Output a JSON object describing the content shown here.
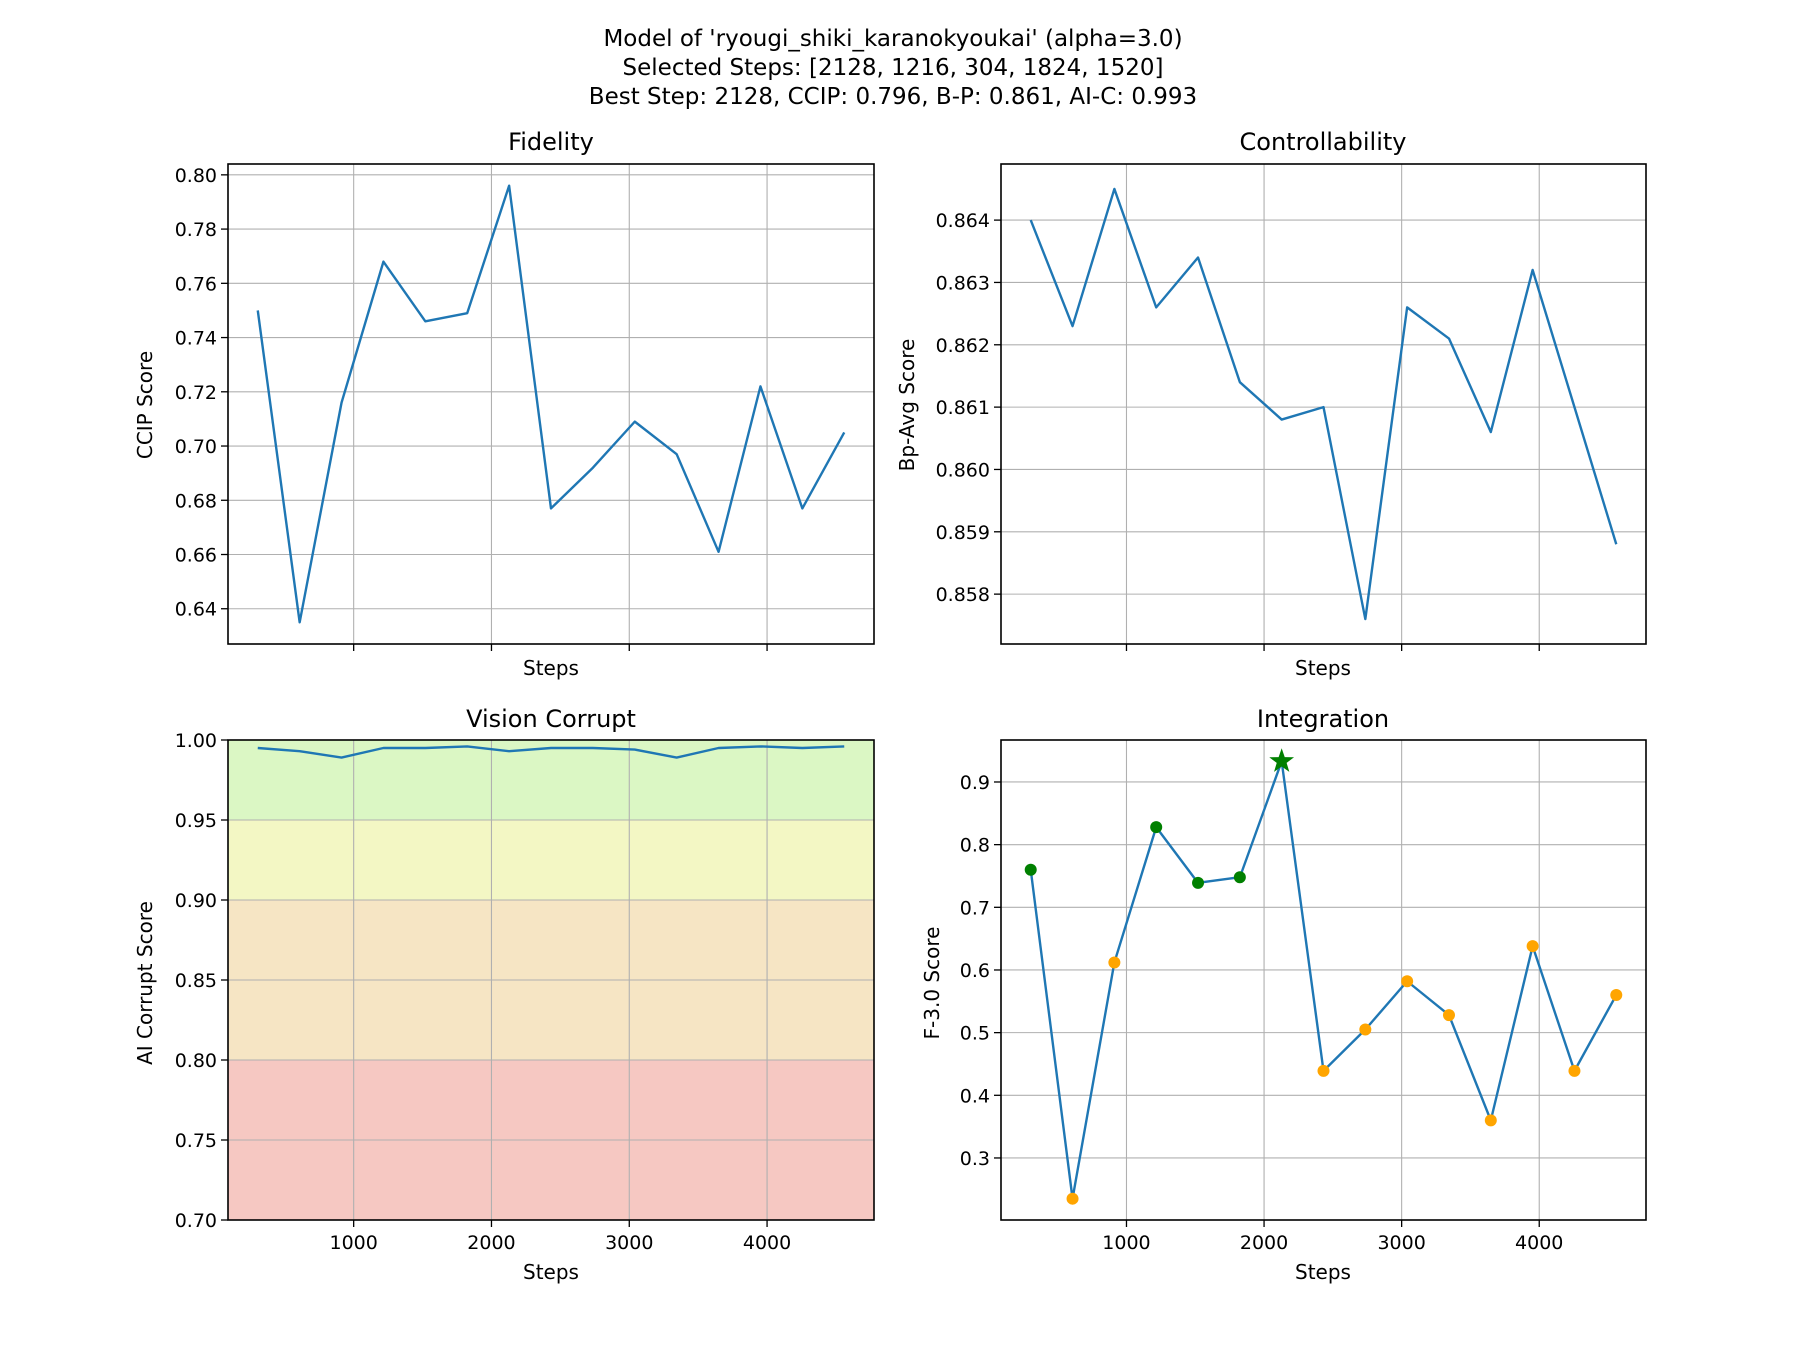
{
  "figure": {
    "title_lines": [
      "Model of 'ryougi_shiki_karanokyoukai' (alpha=3.0)",
      "Selected Steps: [2128, 1216, 304, 1824, 1520]",
      "Best Step: 2128, CCIP: 0.796, B-P: 0.861, AI-C: 0.993"
    ]
  },
  "chart_data": [
    {
      "type": "line",
      "title": "Fidelity",
      "xlabel": "Steps",
      "ylabel": "CCIP Score",
      "x": [
        304,
        608,
        912,
        1216,
        1520,
        1824,
        2128,
        2432,
        2736,
        3040,
        3344,
        3648,
        3952,
        4256,
        4560
      ],
      "series": [
        {
          "values": [
            0.75,
            0.635,
            0.716,
            0.768,
            0.746,
            0.749,
            0.796,
            0.677,
            0.692,
            0.709,
            0.697,
            0.661,
            0.722,
            0.677,
            0.705
          ],
          "color": "#1f77b4"
        }
      ],
      "xlim": [
        88,
        4776
      ],
      "ylim": [
        0.627,
        0.804
      ],
      "xticks": [
        1000,
        2000,
        3000,
        4000
      ],
      "xtick_labels_visible": false,
      "yticks": [
        0.64,
        0.66,
        0.68,
        0.7,
        0.72,
        0.74,
        0.76,
        0.78,
        0.8
      ],
      "ytick_labels": [
        "0.64",
        "0.66",
        "0.68",
        "0.70",
        "0.72",
        "0.74",
        "0.76",
        "0.78",
        "0.80"
      ],
      "grid": true
    },
    {
      "type": "line",
      "title": "Controllability",
      "xlabel": "Steps",
      "ylabel": "Bp-Avg Score",
      "x": [
        304,
        608,
        912,
        1216,
        1520,
        1824,
        2128,
        2432,
        2736,
        3040,
        3344,
        3648,
        3952,
        4256,
        4560
      ],
      "series": [
        {
          "values": [
            0.864,
            0.8623,
            0.8645,
            0.8626,
            0.8634,
            0.8614,
            0.8608,
            0.861,
            0.8576,
            0.8626,
            0.8621,
            0.8606,
            0.8632,
            0.861,
            0.8588
          ],
          "color": "#1f77b4"
        }
      ],
      "xlim": [
        88,
        4776
      ],
      "ylim": [
        0.8572,
        0.8649
      ],
      "xticks": [
        1000,
        2000,
        3000,
        4000
      ],
      "xtick_labels_visible": false,
      "yticks": [
        0.858,
        0.859,
        0.86,
        0.861,
        0.862,
        0.863,
        0.864
      ],
      "ytick_labels": [
        "0.858",
        "0.859",
        "0.860",
        "0.861",
        "0.862",
        "0.863",
        "0.864"
      ],
      "grid": true
    },
    {
      "type": "line",
      "title": "Vision Corrupt",
      "xlabel": "Steps",
      "ylabel": "AI Corrupt Score",
      "x": [
        304,
        608,
        912,
        1216,
        1520,
        1824,
        2128,
        2432,
        2736,
        3040,
        3344,
        3648,
        3952,
        4256,
        4560
      ],
      "series": [
        {
          "values": [
            0.995,
            0.993,
            0.989,
            0.995,
            0.995,
            0.996,
            0.993,
            0.995,
            0.995,
            0.994,
            0.989,
            0.995,
            0.996,
            0.995,
            0.996
          ],
          "color": "#1f77b4"
        }
      ],
      "bands": [
        {
          "from": 0.95,
          "to": 1.0,
          "color": "#dbf7c4"
        },
        {
          "from": 0.9,
          "to": 0.95,
          "color": "#f3f7c4"
        },
        {
          "from": 0.8,
          "to": 0.9,
          "color": "#f6e5c4"
        },
        {
          "from": 0.7,
          "to": 0.8,
          "color": "#f6c8c2"
        }
      ],
      "xlim": [
        88,
        4776
      ],
      "ylim": [
        0.7,
        1.0
      ],
      "xticks": [
        1000,
        2000,
        3000,
        4000
      ],
      "xtick_labels_visible": true,
      "xtick_labels": [
        "1000",
        "2000",
        "3000",
        "4000"
      ],
      "yticks": [
        0.7,
        0.75,
        0.8,
        0.85,
        0.9,
        0.95,
        1.0
      ],
      "ytick_labels": [
        "0.70",
        "0.75",
        "0.80",
        "0.85",
        "0.90",
        "0.95",
        "1.00"
      ],
      "grid": true
    },
    {
      "type": "line",
      "title": "Integration",
      "xlabel": "Steps",
      "ylabel": "F-3.0 Score",
      "x": [
        304,
        608,
        912,
        1216,
        1520,
        1824,
        2128,
        2432,
        2736,
        3040,
        3344,
        3648,
        3952,
        4256,
        4560
      ],
      "series": [
        {
          "values": [
            0.76,
            0.235,
            0.612,
            0.828,
            0.739,
            0.748,
            0.933,
            0.439,
            0.505,
            0.582,
            0.528,
            0.36,
            0.638,
            0.439,
            0.56
          ],
          "color": "#1f77b4"
        }
      ],
      "points": {
        "selected_steps": [
          304,
          1216,
          1520,
          1824
        ],
        "selected_color": "#008000",
        "best_step": 2128,
        "best_marker": "star",
        "best_color": "#008000",
        "other_color": "#ffa500"
      },
      "xlim": [
        88,
        4776
      ],
      "ylim": [
        0.201,
        0.967
      ],
      "xticks": [
        1000,
        2000,
        3000,
        4000
      ],
      "xtick_labels_visible": true,
      "xtick_labels": [
        "1000",
        "2000",
        "3000",
        "4000"
      ],
      "yticks": [
        0.3,
        0.4,
        0.5,
        0.6,
        0.7,
        0.8,
        0.9
      ],
      "ytick_labels": [
        "0.3",
        "0.4",
        "0.5",
        "0.6",
        "0.7",
        "0.8",
        "0.9"
      ],
      "grid": true
    }
  ]
}
